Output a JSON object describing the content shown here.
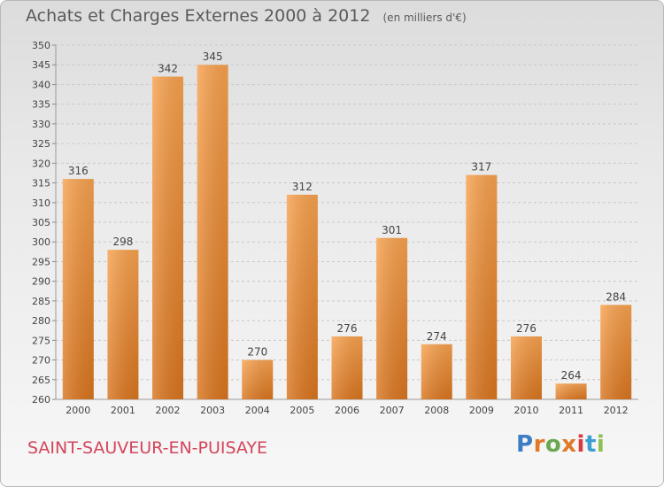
{
  "header": {
    "title": "Achats et Charges Externes 2000 à 2012",
    "unit": "(en milliers d'€)"
  },
  "footer": {
    "commune": "SAINT-SAUVEUR-EN-PUISAYE",
    "brand": "Proxiti"
  },
  "colors": {
    "bar_top": "#f7a24f",
    "bar_bottom": "#d9751f",
    "commune_text": "#d3455b"
  },
  "chart_data": {
    "type": "bar",
    "categories": [
      "2000",
      "2001",
      "2002",
      "2003",
      "2004",
      "2005",
      "2006",
      "2007",
      "2008",
      "2009",
      "2010",
      "2011",
      "2012"
    ],
    "values": [
      316,
      298,
      342,
      345,
      270,
      312,
      276,
      301,
      274,
      317,
      276,
      264,
      284
    ],
    "title": "Achats et Charges Externes 2000 à 2012",
    "ylabel": "",
    "xlabel": "",
    "ylim": [
      260,
      350
    ],
    "yticks": [
      260,
      265,
      270,
      275,
      280,
      285,
      290,
      295,
      300,
      305,
      310,
      315,
      320,
      325,
      330,
      335,
      340,
      345,
      350
    ],
    "grid": true,
    "legend": "none"
  }
}
